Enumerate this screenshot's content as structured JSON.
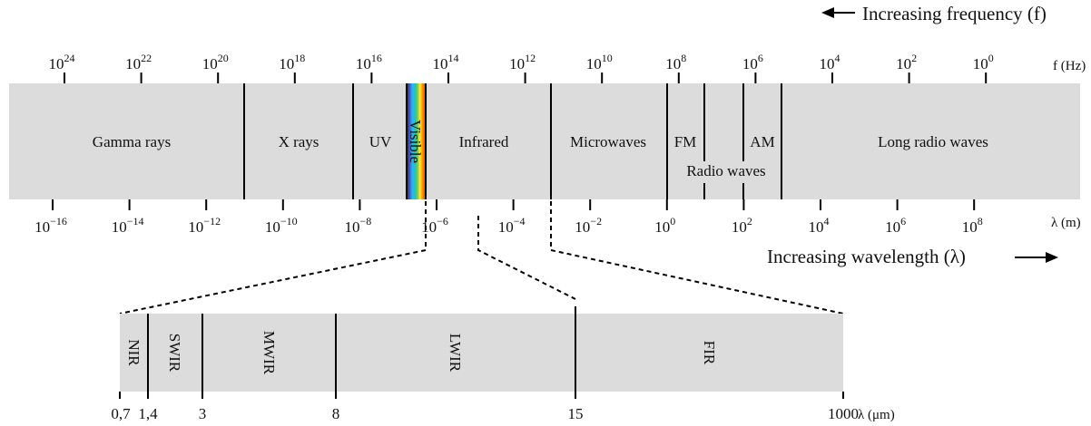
{
  "direction_labels": {
    "frequency": "Increasing frequency (f)",
    "wavelength": "Increasing wavelength (λ)"
  },
  "units": {
    "frequency": "f (Hz)",
    "wavelength": "λ (m)",
    "detail": "λ (μm)"
  },
  "frequency_ticks": [
    {
      "base": "10",
      "exp": "24"
    },
    {
      "base": "10",
      "exp": "22"
    },
    {
      "base": "10",
      "exp": "20"
    },
    {
      "base": "10",
      "exp": "18"
    },
    {
      "base": "10",
      "exp": "16"
    },
    {
      "base": "10",
      "exp": "14"
    },
    {
      "base": "10",
      "exp": "12"
    },
    {
      "base": "10",
      "exp": "10"
    },
    {
      "base": "10",
      "exp": "8"
    },
    {
      "base": "10",
      "exp": "6"
    },
    {
      "base": "10",
      "exp": "4"
    },
    {
      "base": "10",
      "exp": "2"
    },
    {
      "base": "10",
      "exp": "0"
    }
  ],
  "wavelength_ticks": [
    {
      "base": "10",
      "exp": "−16"
    },
    {
      "base": "10",
      "exp": "−14"
    },
    {
      "base": "10",
      "exp": "−12"
    },
    {
      "base": "10",
      "exp": "−10"
    },
    {
      "base": "10",
      "exp": "−8"
    },
    {
      "base": "10",
      "exp": "−6"
    },
    {
      "base": "10",
      "exp": "−4"
    },
    {
      "base": "10",
      "exp": "−2"
    },
    {
      "base": "10",
      "exp": "0"
    },
    {
      "base": "10",
      "exp": "2"
    },
    {
      "base": "10",
      "exp": "4"
    },
    {
      "base": "10",
      "exp": "6"
    },
    {
      "base": "10",
      "exp": "8"
    }
  ],
  "bands": {
    "gamma": "Gamma rays",
    "xray": "X rays",
    "uv": "UV",
    "visible": "Visible",
    "infrared": "Infrared",
    "microwaves": "Microwaves",
    "fm": "FM",
    "am": "AM",
    "radio": "Radio waves",
    "long_radio": "Long radio waves"
  },
  "ir_bands": [
    "NIR",
    "SWIR",
    "MWIR",
    "LWIR",
    "FIR"
  ],
  "ir_ticks": [
    "0,7",
    "1,4",
    "3",
    "8",
    "15",
    "1000"
  ],
  "colors": {
    "band_fill": "#dcdcdc",
    "line": "#000000",
    "spectrum": [
      "#6a1b9a",
      "#3f51b5",
      "#2196f3",
      "#26c6da",
      "#4caf50",
      "#cddc39",
      "#ffeb3b",
      "#ff9800",
      "#f44336"
    ]
  }
}
